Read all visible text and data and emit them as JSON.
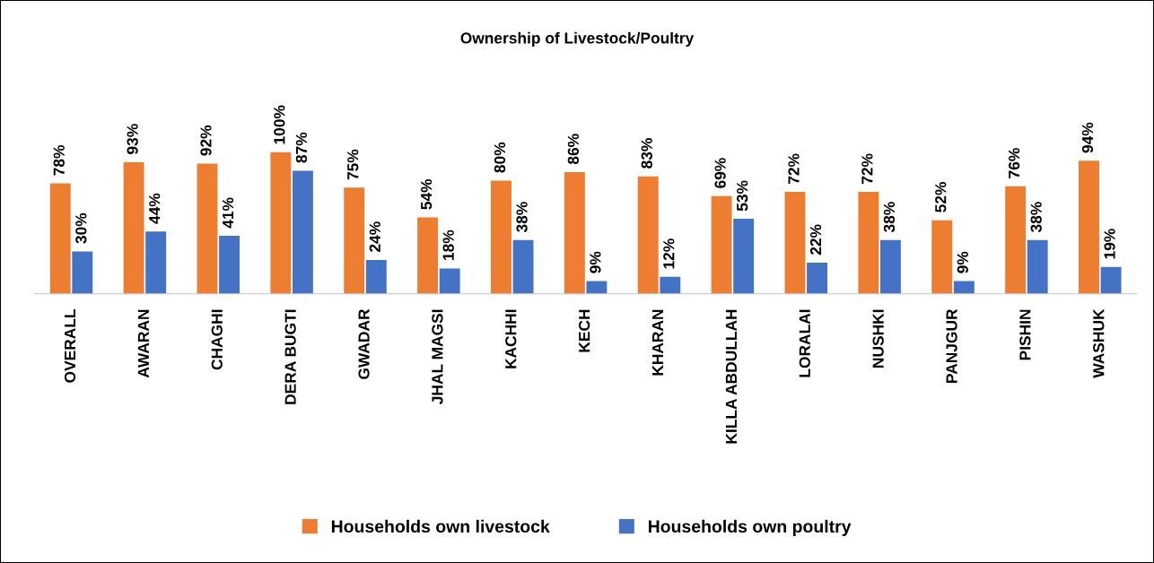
{
  "chart_data": {
    "type": "bar",
    "title": "Ownership of Livestock/Poultry",
    "categories": [
      "OVERALL",
      "AWARAN",
      "CHAGHI",
      "DERA BUGTI",
      "GWADAR",
      "JHAL MAGSI",
      "KACHHI",
      "KECH",
      "KHARAN",
      "KILLA ABDULLAH",
      "LORALAI",
      "NUSHKI",
      "PANJGUR",
      "PISHIN",
      "WASHUK"
    ],
    "series": [
      {
        "name": "Households own livestock",
        "color": "#ed7d31",
        "values": [
          78,
          93,
          92,
          100,
          75,
          54,
          80,
          86,
          83,
          69,
          72,
          72,
          52,
          76,
          94
        ],
        "value_labels": [
          "78%",
          "93%",
          "92%",
          "100%",
          "75%",
          "54%",
          "80%",
          "86%",
          "83%",
          "69%",
          "72%",
          "72%",
          "52%",
          "76%",
          "94%"
        ]
      },
      {
        "name": "Households own poultry",
        "color": "#4472c4",
        "values": [
          30,
          44,
          41,
          87,
          24,
          18,
          38,
          9,
          12,
          53,
          22,
          38,
          9,
          38,
          19
        ],
        "value_labels": [
          "30%",
          "44%",
          "41%",
          "87%",
          "24%",
          "18%",
          "38%",
          "9%",
          "12%",
          "53%",
          "22%",
          "38%",
          "9%",
          "38%",
          "19%"
        ]
      }
    ],
    "legend": "bottom",
    "grid": false
  }
}
